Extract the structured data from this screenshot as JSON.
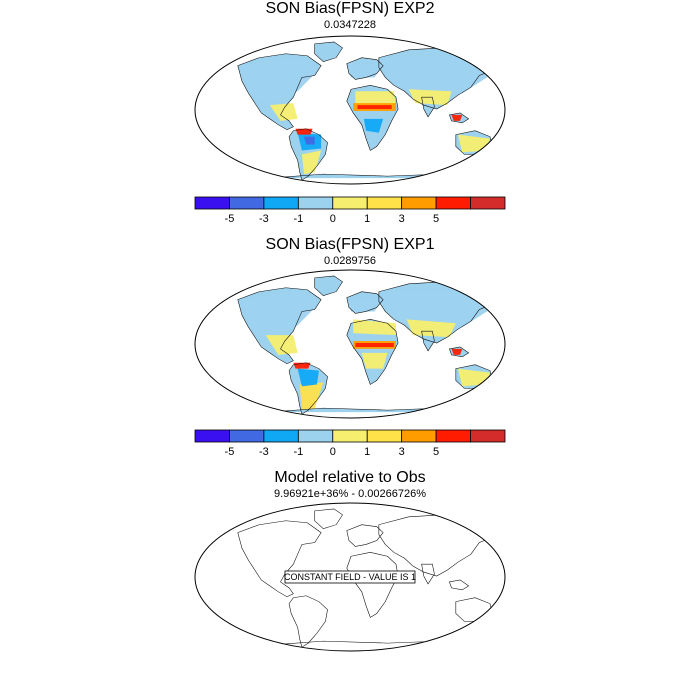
{
  "panels": [
    {
      "title": "SON Bias(FPSN) EXP2",
      "subtitle": "0.0347228",
      "variant": "exp2",
      "has_colorbar": true
    },
    {
      "title": "SON Bias(FPSN) EXP1",
      "subtitle": "0.0289756",
      "variant": "exp1",
      "has_colorbar": true
    },
    {
      "title": "Model relative to Obs",
      "subtitle": "9.96921e+36% - 0.00266726%",
      "variant": "blank",
      "has_colorbar": false,
      "note": "CONSTANT FIELD - VALUE IS 1"
    }
  ],
  "colorbar": {
    "colors": [
      "#3b10f0",
      "#4169e1",
      "#10a8f5",
      "#9dd2ef",
      "#f6ee6e",
      "#ffe14a",
      "#ff9d00",
      "#ff1c00",
      "#d42b2b"
    ],
    "labels": [
      "-5",
      "-3",
      "-1",
      "0",
      "1",
      "3",
      "5"
    ]
  }
}
